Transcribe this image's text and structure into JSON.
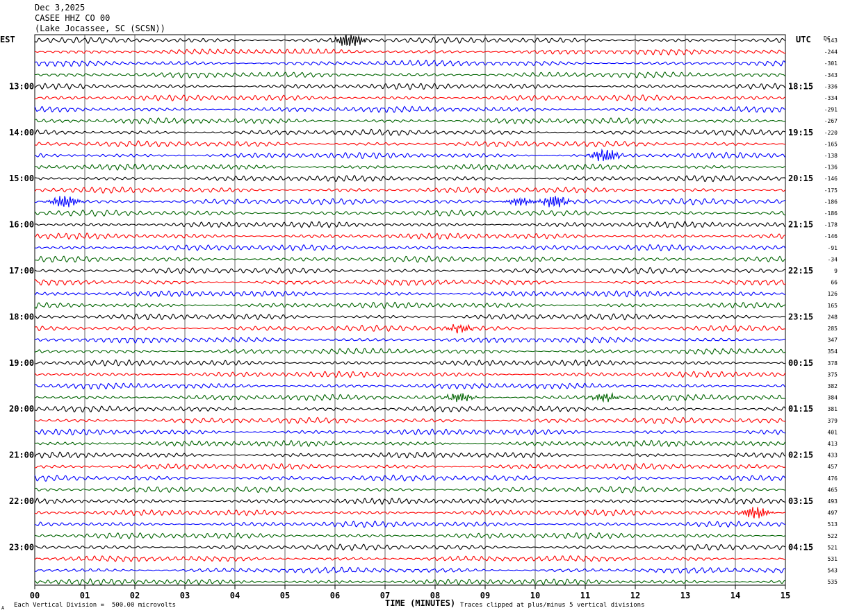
{
  "header": {
    "date": "Dec 3,2025",
    "station": "CASEE HHZ CO 00",
    "location": "(Lake Jocassee, SC (SCSN))"
  },
  "chart_data": {
    "type": "line",
    "title": "CASEE HHZ CO 00",
    "xlabel": "TIME (MINUTES)",
    "x_ticks": [
      "00",
      "01",
      "02",
      "03",
      "04",
      "05",
      "06",
      "07",
      "08",
      "09",
      "10",
      "11",
      "12",
      "13",
      "14",
      "15"
    ],
    "xlim": [
      0,
      15
    ],
    "left_timezone": "EST",
    "right_timezone": "UTC",
    "dc_label": "DC",
    "left_hour_labels": [
      "13:00",
      "14:00",
      "15:00",
      "16:00",
      "17:00",
      "18:00",
      "19:00",
      "20:00",
      "21:00",
      "22:00",
      "23:00"
    ],
    "right_hour_labels": [
      "18:15",
      "19:15",
      "20:15",
      "21:15",
      "22:15",
      "23:15",
      "00:15",
      "01:15",
      "02:15",
      "03:15",
      "04:15"
    ],
    "trace_colors": [
      "#000000",
      "#ff0000",
      "#0000ff",
      "#006400"
    ],
    "dc_offsets": [
      "-143",
      "-244",
      "-301",
      "-343",
      "-336",
      "-334",
      "-291",
      "-267",
      "-220",
      "-165",
      "-138",
      "-136",
      "-146",
      "-175",
      "-186",
      "-186",
      "-178",
      "-146",
      "-91",
      "-34",
      "9",
      "66",
      "126",
      "165",
      "248",
      "285",
      "347",
      "354",
      "378",
      "375",
      "382",
      "384",
      "381",
      "379",
      "401",
      "413",
      "433",
      "457",
      "476",
      "465",
      "493",
      "497",
      "513",
      "522",
      "521",
      "531",
      "543",
      "535"
    ],
    "events": [
      {
        "trace": 0,
        "minute": 6.3,
        "amp": 2.4
      },
      {
        "trace": 10,
        "minute": 11.4,
        "amp": 2.0
      },
      {
        "trace": 14,
        "minute": 0.6,
        "amp": 1.9
      },
      {
        "trace": 14,
        "minute": 10.4,
        "amp": 1.8
      },
      {
        "trace": 14,
        "minute": 9.7,
        "amp": 1.1
      },
      {
        "trace": 25,
        "minute": 8.5,
        "amp": 1.0
      },
      {
        "trace": 31,
        "minute": 8.5,
        "amp": 1.2
      },
      {
        "trace": 31,
        "minute": 11.4,
        "amp": 1.1
      },
      {
        "trace": 41,
        "minute": 14.4,
        "amp": 1.8
      }
    ]
  },
  "footer": {
    "scale_note": "Each Vertical Division =  500.00 microvolts",
    "clip_note": "Traces clipped at plus/minus 5 vertical divisions",
    "corner_mark": "A"
  }
}
